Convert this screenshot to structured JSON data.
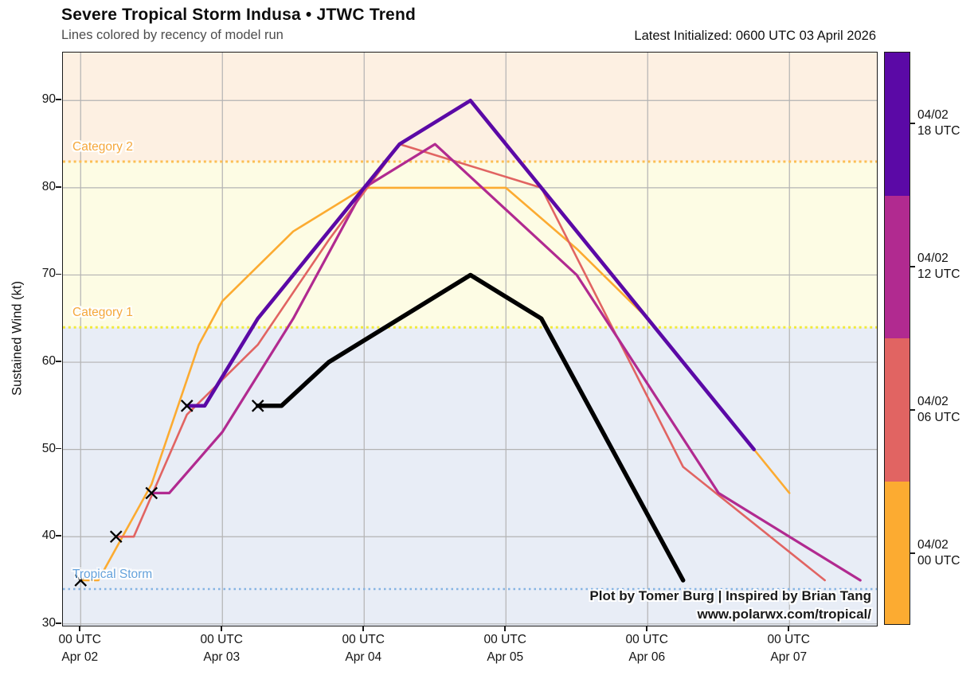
{
  "header": {
    "title": "Severe Tropical Storm Indusa • JTWC Trend",
    "subtitle": "Lines colored by recency of model run",
    "latest_initialized": "Latest Initialized: 0600 UTC 03 April 2026"
  },
  "axes": {
    "ylabel": "Sustained Wind (kt)",
    "yticks": [
      90,
      80,
      70,
      60,
      50,
      40,
      30
    ],
    "xticks": [
      {
        "hour": 0,
        "line1": "00 UTC",
        "line2": "Apr 02"
      },
      {
        "hour": 24,
        "line1": "00 UTC",
        "line2": "Apr 03"
      },
      {
        "hour": 48,
        "line1": "00 UTC",
        "line2": "Apr 04"
      },
      {
        "hour": 72,
        "line1": "00 UTC",
        "line2": "Apr 05"
      },
      {
        "hour": 96,
        "line1": "00 UTC",
        "line2": "Apr 06"
      },
      {
        "hour": 120,
        "line1": "00 UTC",
        "line2": "Apr 07"
      }
    ]
  },
  "attribution": {
    "line1": "Plot by Tomer Burg | Inspired by Brian Tang",
    "line2": "www.polarwx.com/tropical/"
  },
  "colorbar": {
    "segments": [
      {
        "color": "#5b09a6",
        "label_line1": "04/02",
        "label_line2": "18 UTC"
      },
      {
        "color": "#b12a90",
        "label_line1": "04/02",
        "label_line2": "12 UTC"
      },
      {
        "color": "#e16462",
        "label_line1": "04/02",
        "label_line2": "06 UTC"
      },
      {
        "color": "#fcab31",
        "label_line1": "04/02",
        "label_line2": "00 UTC"
      }
    ]
  },
  "chart_data": {
    "type": "line",
    "title": "Severe Tropical Storm Indusa • JTWC Trend",
    "xlabel_unit": "hours since 00 UTC 02 April 2026",
    "ylabel": "Sustained Wind (kt)",
    "xlim_hours": [
      -3,
      134.8
    ],
    "ylim": [
      29.8,
      95.5
    ],
    "grid": {
      "x_hours": [
        0,
        24,
        48,
        72,
        96,
        120
      ],
      "y_values": [
        30,
        40,
        50,
        60,
        70,
        80,
        90
      ]
    },
    "bands": [
      {
        "name": "category-2-plus",
        "from": 83,
        "to": 95.5,
        "color": "#fdf0e2"
      },
      {
        "name": "category-1",
        "from": 64,
        "to": 83,
        "color": "#fdfce4"
      },
      {
        "name": "below-hurricane",
        "from": 29.8,
        "to": 64,
        "color": "#e8edf6"
      }
    ],
    "thresholds": [
      {
        "label": "Category 2",
        "value": 83,
        "line_color": "#fcbf55",
        "label_color": "#f5a83c",
        "line_width": 3,
        "dash": "3 3.8"
      },
      {
        "label": "Category 1",
        "value": 64,
        "line_color": "#f1ea3d",
        "label_color": "#f5a83c",
        "line_width": 3,
        "dash": "3 3.8"
      },
      {
        "label": "Tropical Storm",
        "value": 34,
        "line_color": "#85b4e3",
        "label_color": "#66a3dc",
        "line_width": 2.5,
        "dash": "2.5 4"
      }
    ],
    "series": [
      {
        "name": "04/02 00 UTC",
        "color": "#fcab31",
        "width": 2.6,
        "points": [
          [
            0,
            35
          ],
          [
            3,
            35
          ],
          [
            12,
            46
          ],
          [
            20,
            62
          ],
          [
            24,
            67
          ],
          [
            36,
            75
          ],
          [
            48,
            80
          ],
          [
            72,
            80
          ],
          [
            84,
            73
          ],
          [
            96,
            65
          ],
          [
            114,
            50
          ],
          [
            120,
            45
          ]
        ]
      },
      {
        "name": "04/02 06 UTC",
        "color": "#e16462",
        "width": 2.6,
        "points": [
          [
            6,
            40
          ],
          [
            9,
            40
          ],
          [
            18,
            54
          ],
          [
            30,
            62
          ],
          [
            42,
            74
          ],
          [
            54,
            85
          ],
          [
            78,
            80
          ],
          [
            102,
            48
          ],
          [
            126,
            35
          ]
        ]
      },
      {
        "name": "04/02 12 UTC",
        "color": "#b12a90",
        "width": 3.2,
        "points": [
          [
            12,
            45
          ],
          [
            15,
            45
          ],
          [
            24,
            52
          ],
          [
            36,
            65
          ],
          [
            48,
            80
          ],
          [
            60,
            85
          ],
          [
            84,
            70
          ],
          [
            108,
            45
          ],
          [
            132,
            35
          ]
        ]
      },
      {
        "name": "04/02 18 UTC",
        "color": "#5b09a6",
        "width": 4.6,
        "points": [
          [
            18,
            55
          ],
          [
            21,
            55
          ],
          [
            30,
            65
          ],
          [
            42,
            75
          ],
          [
            54,
            85
          ],
          [
            66,
            90
          ],
          [
            114,
            50
          ]
        ]
      },
      {
        "name": "JTWC latest (initialized 06 UTC 03 April)",
        "color": "#000000",
        "width": 5.5,
        "points": [
          [
            30,
            55
          ],
          [
            34,
            55
          ],
          [
            42,
            60
          ],
          [
            66,
            70
          ],
          [
            78,
            65
          ],
          [
            102,
            35
          ]
        ]
      }
    ],
    "init_markers": {
      "symbol": "x",
      "color": "#000000",
      "points": [
        [
          0,
          35
        ],
        [
          6,
          40
        ],
        [
          12,
          45
        ],
        [
          18,
          55
        ],
        [
          30,
          55
        ]
      ]
    },
    "legend_position": "right-colorbar",
    "grid_on": true
  }
}
